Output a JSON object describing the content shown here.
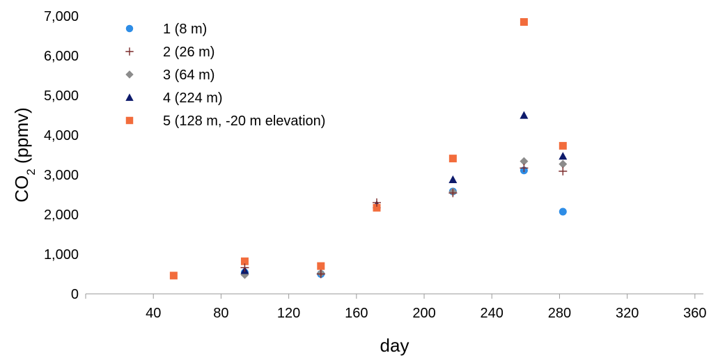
{
  "chart_data": {
    "type": "scatter",
    "title": "",
    "xlabel": "day",
    "ylabel_main": "CO",
    "ylabel_sub": "2",
    "ylabel_tail": " (ppmv)",
    "xlim": [
      0,
      365
    ],
    "ylim": [
      0,
      7000
    ],
    "x_ticks": [
      40,
      80,
      120,
      160,
      200,
      240,
      280,
      320,
      360
    ],
    "x_tick_labels": [
      "40",
      "80",
      "120",
      "160",
      "200",
      "240",
      "280",
      "320",
      "360"
    ],
    "y_ticks": [
      0,
      1000,
      2000,
      3000,
      4000,
      5000,
      6000,
      7000
    ],
    "y_tick_labels": [
      "0",
      "1,000",
      "2,000",
      "3,000",
      "4,000",
      "5,000",
      "6,000",
      "7,000"
    ],
    "grid": false,
    "legend_position": "top-left",
    "series": [
      {
        "name": "1 (8 m)",
        "marker": "circle",
        "color": "#2e8de6",
        "points": [
          [
            94,
            540
          ],
          [
            139,
            500
          ],
          [
            217,
            2580
          ],
          [
            259,
            3110
          ],
          [
            282,
            2070
          ]
        ]
      },
      {
        "name": "2 (26 m)",
        "marker": "plus",
        "color": "#7a2a2a",
        "points": [
          [
            94,
            660
          ],
          [
            139,
            500
          ],
          [
            172,
            2300
          ],
          [
            217,
            2540
          ],
          [
            259,
            3170
          ],
          [
            282,
            3090
          ]
        ]
      },
      {
        "name": "3 (64 m)",
        "marker": "diamond",
        "color": "#8c8c8c",
        "points": [
          [
            94,
            480
          ],
          [
            139,
            520
          ],
          [
            217,
            2570
          ],
          [
            259,
            3340
          ],
          [
            282,
            3270
          ]
        ]
      },
      {
        "name": "4 (224 m)",
        "marker": "triangle",
        "color": "#0d1a6b",
        "points": [
          [
            94,
            590
          ],
          [
            172,
            2250
          ],
          [
            217,
            2880
          ],
          [
            259,
            4500
          ],
          [
            282,
            3470
          ]
        ]
      },
      {
        "name": "5 (128 m, -20 m elevation)",
        "marker": "square",
        "color": "#f26c3c",
        "points": [
          [
            52,
            460
          ],
          [
            94,
            820
          ],
          [
            139,
            700
          ],
          [
            172,
            2170
          ],
          [
            217,
            3410
          ],
          [
            259,
            6850
          ],
          [
            282,
            3730
          ]
        ]
      }
    ]
  }
}
